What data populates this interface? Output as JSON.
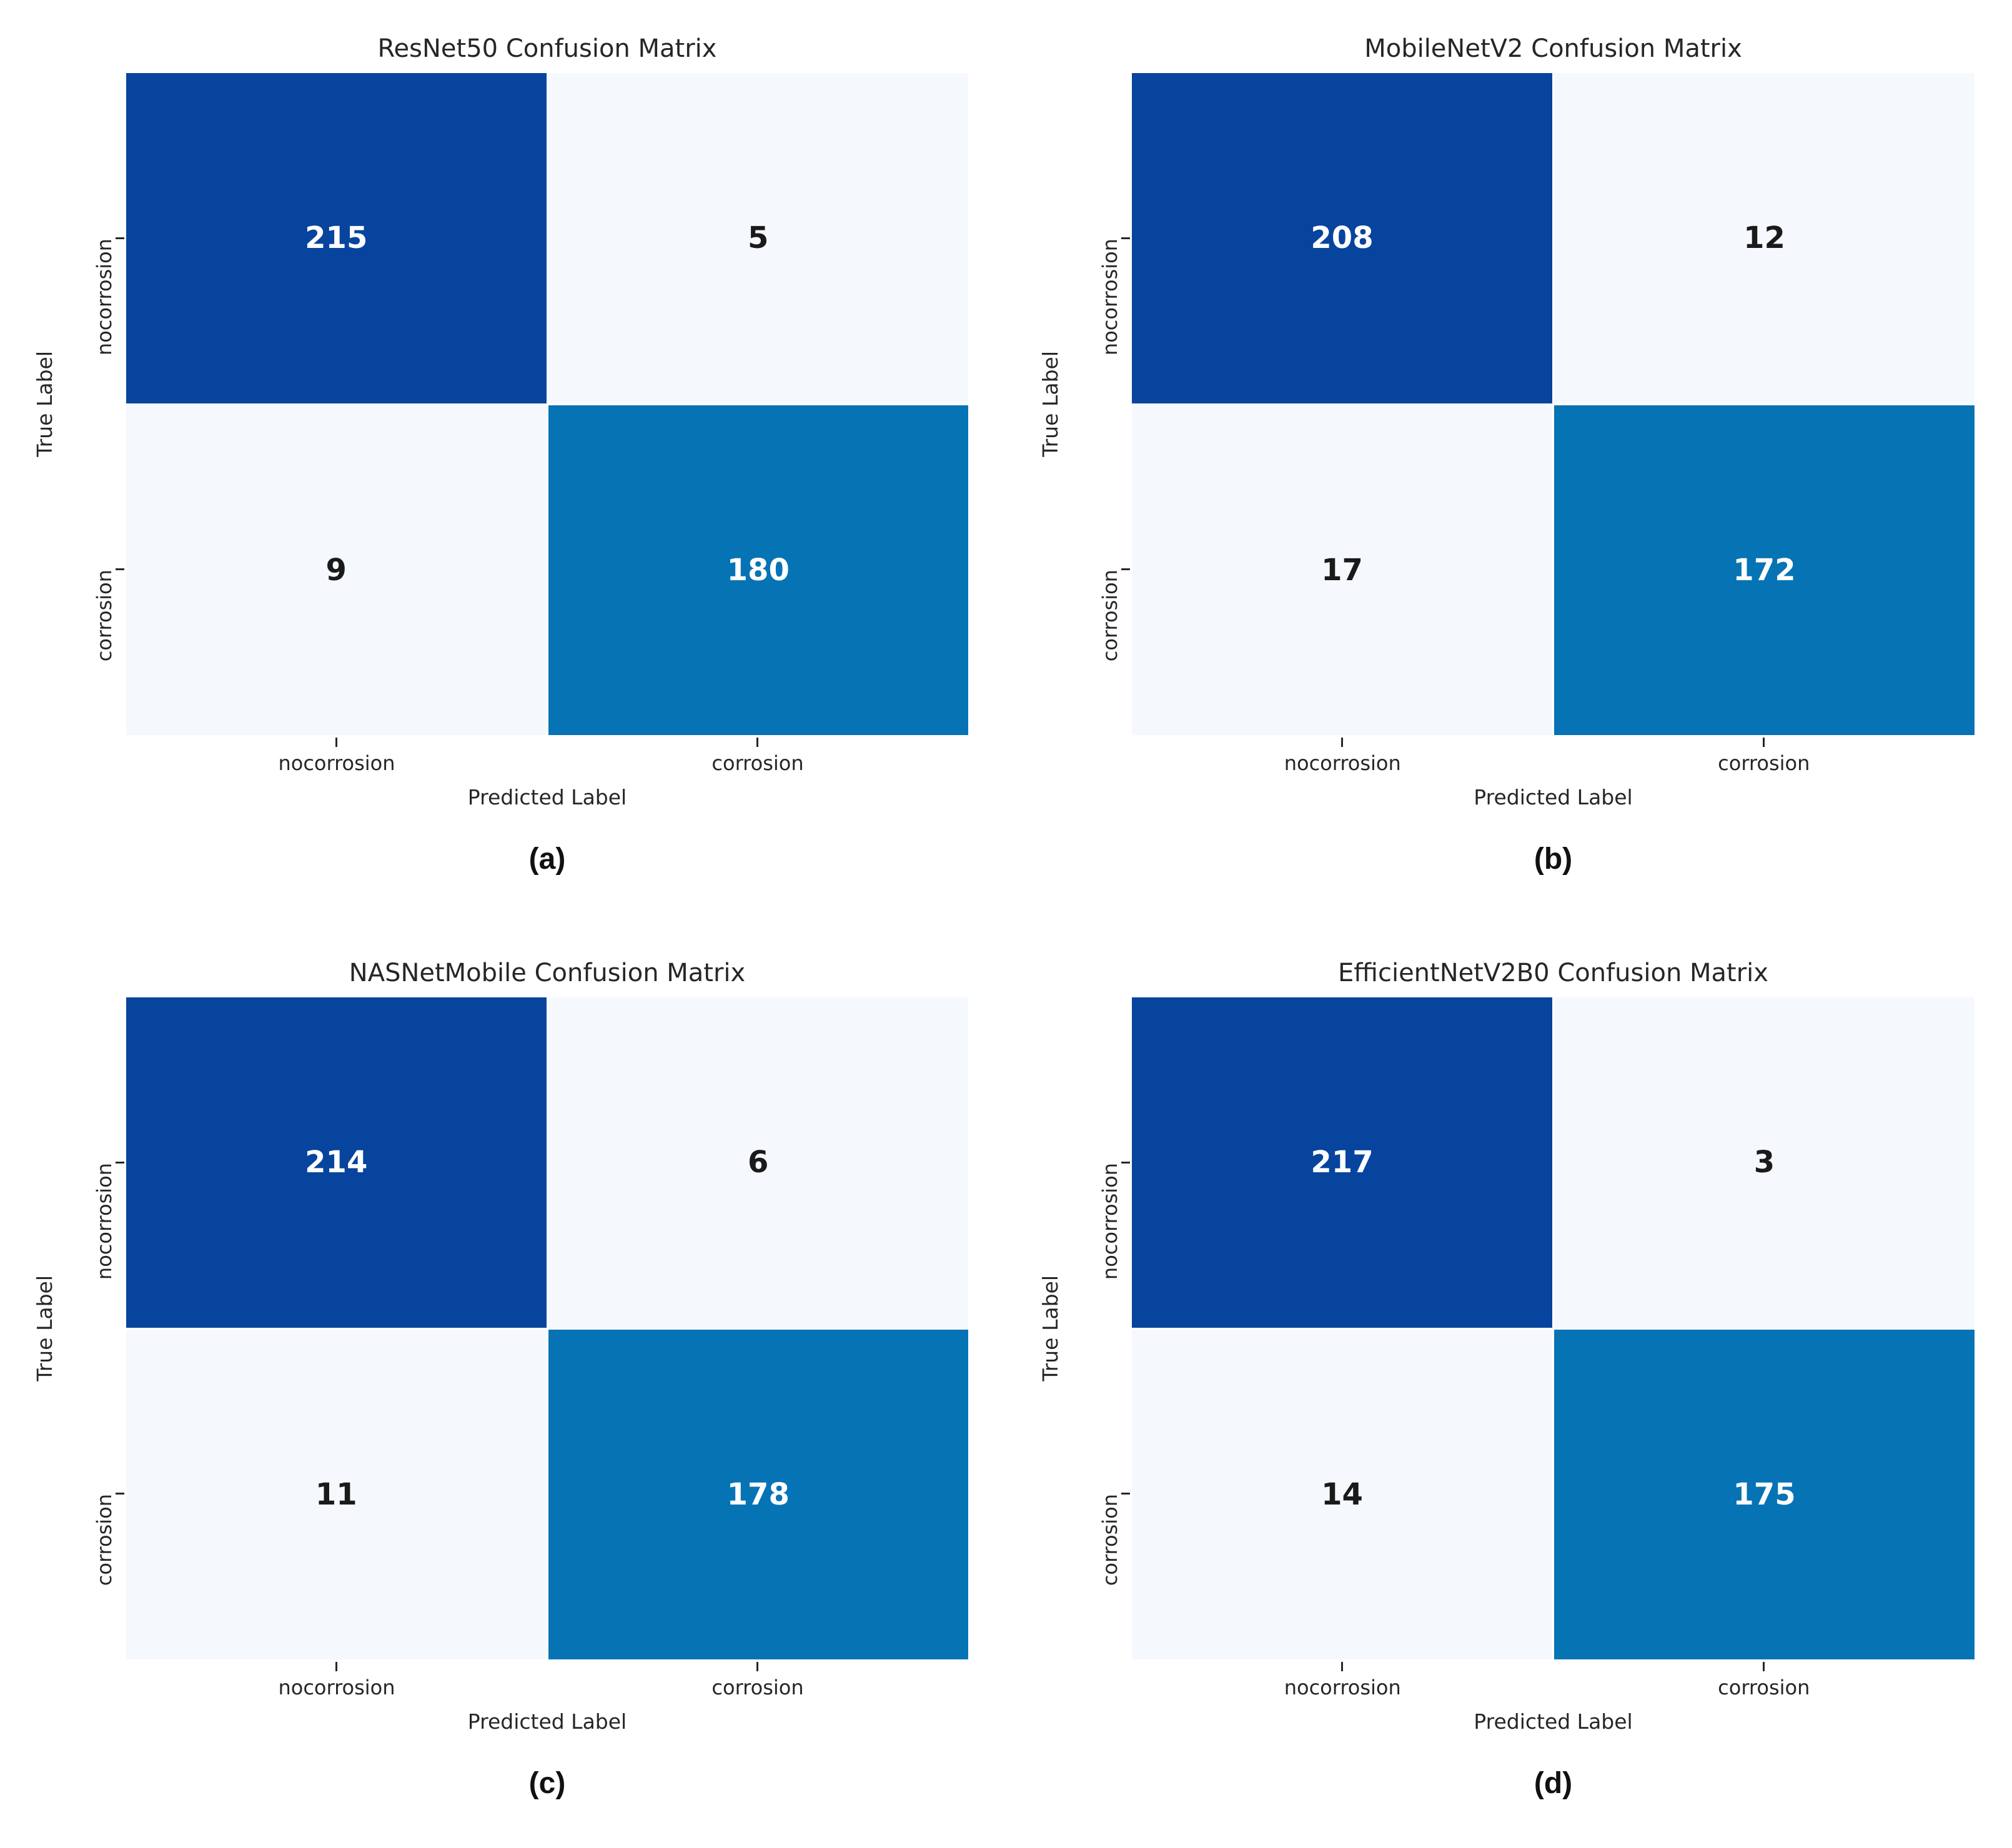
{
  "colors": {
    "cell-dark": "#07449d",
    "cell-mid": "#0673b5",
    "cell-light": "#f5f9fd",
    "gap-line": "#ffffff",
    "text-on-dark": "#ffffff",
    "text-on-light": "#1a1a1a",
    "axis-text": "#262626"
  },
  "chart_data": [
    {
      "type": "heatmap",
      "title": "ResNet50 Confusion Matrix",
      "caption": "(a)",
      "xlabel": "Predicted Label",
      "ylabel": "True Label",
      "x_categories": [
        "nocorrosion",
        "corrosion"
      ],
      "y_categories": [
        "nocorrosion",
        "corrosion"
      ],
      "values": [
        [
          215,
          5
        ],
        [
          9,
          180
        ]
      ]
    },
    {
      "type": "heatmap",
      "title": "MobileNetV2 Confusion Matrix",
      "caption": "(b)",
      "xlabel": "Predicted Label",
      "ylabel": "True Label",
      "x_categories": [
        "nocorrosion",
        "corrosion"
      ],
      "y_categories": [
        "nocorrosion",
        "corrosion"
      ],
      "values": [
        [
          208,
          12
        ],
        [
          17,
          172
        ]
      ]
    },
    {
      "type": "heatmap",
      "title": "NASNetMobile Confusion Matrix",
      "caption": "(c)",
      "xlabel": "Predicted Label",
      "ylabel": "True Label",
      "x_categories": [
        "nocorrosion",
        "corrosion"
      ],
      "y_categories": [
        "nocorrosion",
        "corrosion"
      ],
      "values": [
        [
          214,
          6
        ],
        [
          11,
          178
        ]
      ]
    },
    {
      "type": "heatmap",
      "title": "EfficientNetV2B0 Confusion Matrix",
      "caption": "(d)",
      "xlabel": "Predicted Label",
      "ylabel": "True Label",
      "x_categories": [
        "nocorrosion",
        "corrosion"
      ],
      "y_categories": [
        "nocorrosion",
        "corrosion"
      ],
      "values": [
        [
          217,
          3
        ],
        [
          14,
          175
        ]
      ]
    }
  ]
}
